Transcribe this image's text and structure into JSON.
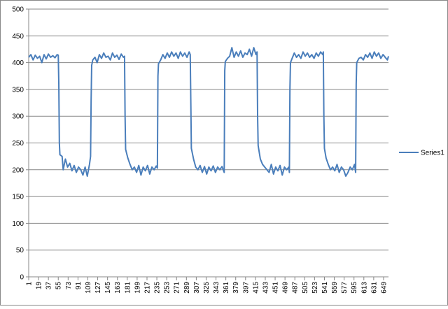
{
  "chart_data": {
    "type": "line",
    "x": [
      1,
      5,
      9,
      13,
      17,
      21,
      25,
      29,
      33,
      37,
      41,
      45,
      49,
      53,
      55,
      56,
      57,
      58,
      62,
      64,
      68,
      72,
      76,
      80,
      84,
      88,
      92,
      96,
      100,
      104,
      108,
      112,
      114,
      115,
      116,
      118,
      122,
      126,
      130,
      134,
      138,
      142,
      146,
      150,
      154,
      158,
      162,
      166,
      170,
      174,
      176,
      177,
      178,
      182,
      186,
      190,
      194,
      198,
      202,
      206,
      210,
      214,
      218,
      222,
      226,
      230,
      234,
      236,
      237,
      238,
      242,
      246,
      250,
      254,
      258,
      262,
      266,
      270,
      274,
      278,
      282,
      286,
      290,
      294,
      296,
      297,
      298,
      302,
      306,
      310,
      314,
      318,
      322,
      326,
      330,
      334,
      338,
      342,
      346,
      350,
      354,
      358,
      359,
      360,
      364,
      368,
      372,
      376,
      380,
      384,
      388,
      392,
      396,
      400,
      404,
      408,
      412,
      416,
      418,
      419,
      420,
      424,
      428,
      432,
      436,
      440,
      444,
      448,
      452,
      456,
      460,
      464,
      468,
      472,
      476,
      477,
      478,
      479,
      482,
      486,
      490,
      494,
      498,
      502,
      506,
      510,
      514,
      518,
      522,
      526,
      530,
      534,
      538,
      539,
      540,
      541,
      544,
      548,
      552,
      556,
      560,
      564,
      568,
      572,
      576,
      580,
      584,
      588,
      592,
      596,
      598,
      599,
      600,
      604,
      608,
      612,
      616,
      620,
      624,
      628,
      632,
      636,
      640,
      644,
      648,
      652,
      656,
      658
    ],
    "series": [
      {
        "name": "Series1",
        "color": "#4a7ebb",
        "values": [
          410,
          415,
          405,
          414,
          408,
          412,
          400,
          415,
          407,
          416,
          410,
          413,
          409,
          415,
          414,
          360,
          250,
          228,
          225,
          200,
          220,
          205,
          212,
          198,
          208,
          195,
          205,
          200,
          190,
          205,
          188,
          210,
          225,
          330,
          395,
          405,
          410,
          400,
          415,
          408,
          418,
          410,
          412,
          405,
          418,
          410,
          414,
          406,
          416,
          410,
          412,
          300,
          238,
          222,
          210,
          200,
          205,
          195,
          208,
          190,
          205,
          198,
          208,
          192,
          205,
          200,
          207,
          203,
          375,
          398,
          405,
          415,
          408,
          418,
          410,
          420,
          412,
          418,
          408,
          420,
          412,
          418,
          410,
          420,
          415,
          330,
          240,
          220,
          205,
          200,
          208,
          195,
          206,
          192,
          205,
          198,
          207,
          195,
          205,
          200,
          206,
          195,
          385,
          402,
          408,
          412,
          428,
          410,
          420,
          412,
          422,
          410,
          418,
          415,
          425,
          412,
          428,
          415,
          420,
          300,
          245,
          220,
          210,
          205,
          200,
          195,
          210,
          192,
          205,
          198,
          208,
          190,
          205,
          200,
          205,
          195,
          350,
          400,
          408,
          418,
          410,
          415,
          408,
          420,
          412,
          418,
          410,
          415,
          408,
          418,
          412,
          420,
          415,
          420,
          300,
          240,
          222,
          210,
          200,
          205,
          198,
          210,
          195,
          205,
          200,
          188,
          195,
          205,
          200,
          210,
          195,
          360,
          400,
          408,
          410,
          405,
          415,
          410,
          418,
          408,
          420,
          412,
          418,
          408,
          415,
          410,
          405,
          412
        ]
      }
    ],
    "xlim": [
      1,
      658
    ],
    "xticks": [
      1,
      19,
      37,
      55,
      73,
      91,
      109,
      127,
      145,
      163,
      181,
      199,
      217,
      235,
      253,
      271,
      289,
      307,
      325,
      343,
      361,
      379,
      397,
      415,
      433,
      451,
      469,
      487,
      505,
      523,
      541,
      559,
      577,
      595,
      613,
      631,
      649
    ],
    "ylim": [
      0,
      500
    ],
    "yticks": [
      0,
      50,
      100,
      150,
      200,
      250,
      300,
      350,
      400,
      450,
      500
    ],
    "grid": true,
    "legend": "right"
  }
}
